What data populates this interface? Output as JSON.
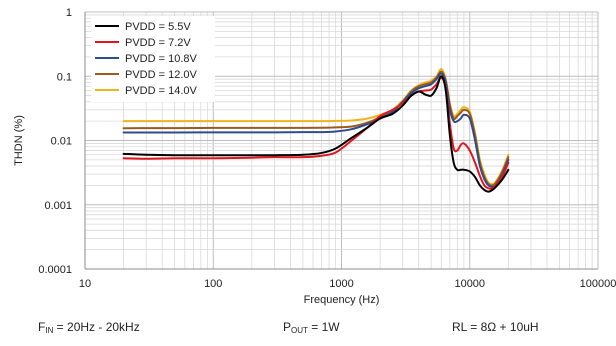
{
  "chart_data": {
    "type": "line",
    "xscale": "log",
    "yscale": "log",
    "xlim": [
      10,
      100000
    ],
    "ylim": [
      0.0001,
      1
    ],
    "xlabel": "Frequency (Hz)",
    "ylabel": "THDN (%)",
    "x_ticks": [
      "10",
      "100",
      "1000",
      "10000",
      "100000"
    ],
    "y_ticks": [
      "1",
      "0.1",
      "0.01",
      "0.001",
      "0.0001"
    ],
    "grid": "on",
    "legend": "top-left",
    "x": [
      20,
      30,
      50,
      100,
      200,
      300,
      500,
      700,
      900,
      1200,
      1600,
      2000,
      2500,
      3000,
      3500,
      4000,
      4500,
      5000,
      5500,
      6000,
      6500,
      7000,
      7500,
      8000,
      8500,
      9000,
      10000,
      11000,
      12000,
      13000,
      14000,
      15000,
      16000,
      18000,
      20000
    ],
    "series": [
      {
        "name": "PVDD = 5.5V",
        "color": "#000000",
        "values": [
          0.0062,
          0.006,
          0.0059,
          0.0059,
          0.0059,
          0.0059,
          0.006,
          0.0064,
          0.0075,
          0.011,
          0.016,
          0.022,
          0.026,
          0.035,
          0.05,
          0.058,
          0.052,
          0.05,
          0.065,
          0.1,
          0.06,
          0.012,
          0.0045,
          0.0035,
          0.0035,
          0.0035,
          0.0033,
          0.0027,
          0.002,
          0.0017,
          0.0016,
          0.0017,
          0.0019,
          0.0025,
          0.0035
        ]
      },
      {
        "name": "PVDD = 7.2V",
        "color": "#e3151c",
        "values": [
          0.0053,
          0.0052,
          0.0053,
          0.0053,
          0.0054,
          0.0055,
          0.0055,
          0.0058,
          0.0065,
          0.01,
          0.016,
          0.024,
          0.03,
          0.038,
          0.05,
          0.058,
          0.06,
          0.062,
          0.075,
          0.095,
          0.065,
          0.018,
          0.0075,
          0.007,
          0.0085,
          0.009,
          0.007,
          0.0045,
          0.0028,
          0.002,
          0.0018,
          0.0018,
          0.002,
          0.0028,
          0.0045
        ]
      },
      {
        "name": "PVDD = 10.8V",
        "color": "#2e4d8f",
        "values": [
          0.0133,
          0.0133,
          0.0133,
          0.0134,
          0.0134,
          0.0134,
          0.0135,
          0.0135,
          0.0138,
          0.015,
          0.018,
          0.022,
          0.028,
          0.04,
          0.055,
          0.065,
          0.07,
          0.075,
          0.09,
          0.11,
          0.08,
          0.03,
          0.02,
          0.02,
          0.022,
          0.025,
          0.022,
          0.01,
          0.004,
          0.0025,
          0.002,
          0.0019,
          0.002,
          0.003,
          0.005
        ]
      },
      {
        "name": "PVDD = 12.0V",
        "color": "#9a5b1e",
        "values": [
          0.0155,
          0.0156,
          0.0156,
          0.0157,
          0.0157,
          0.0157,
          0.0157,
          0.0158,
          0.016,
          0.0165,
          0.019,
          0.023,
          0.028,
          0.04,
          0.058,
          0.07,
          0.075,
          0.08,
          0.095,
          0.118,
          0.085,
          0.035,
          0.022,
          0.024,
          0.027,
          0.03,
          0.026,
          0.012,
          0.0045,
          0.0027,
          0.0021,
          0.002,
          0.0022,
          0.0033,
          0.0055
        ]
      },
      {
        "name": "PVDD = 14.0V",
        "color": "#f0b21e",
        "values": [
          0.02,
          0.02,
          0.02,
          0.02,
          0.02,
          0.02,
          0.02,
          0.02,
          0.0202,
          0.0205,
          0.022,
          0.025,
          0.03,
          0.042,
          0.06,
          0.072,
          0.08,
          0.085,
          0.1,
          0.13,
          0.09,
          0.038,
          0.024,
          0.026,
          0.03,
          0.033,
          0.028,
          0.013,
          0.005,
          0.003,
          0.0022,
          0.0021,
          0.0023,
          0.0035,
          0.006
        ]
      }
    ]
  },
  "footer": {
    "fin_symbol": "F",
    "fin_sub": "IN",
    "fin_value": " = 20Hz  - 20kHz",
    "pout_symbol": "P",
    "pout_sub": "OUT",
    "pout_value": " = 1W",
    "rl_text": "RL = 8Ω + 10uH"
  }
}
